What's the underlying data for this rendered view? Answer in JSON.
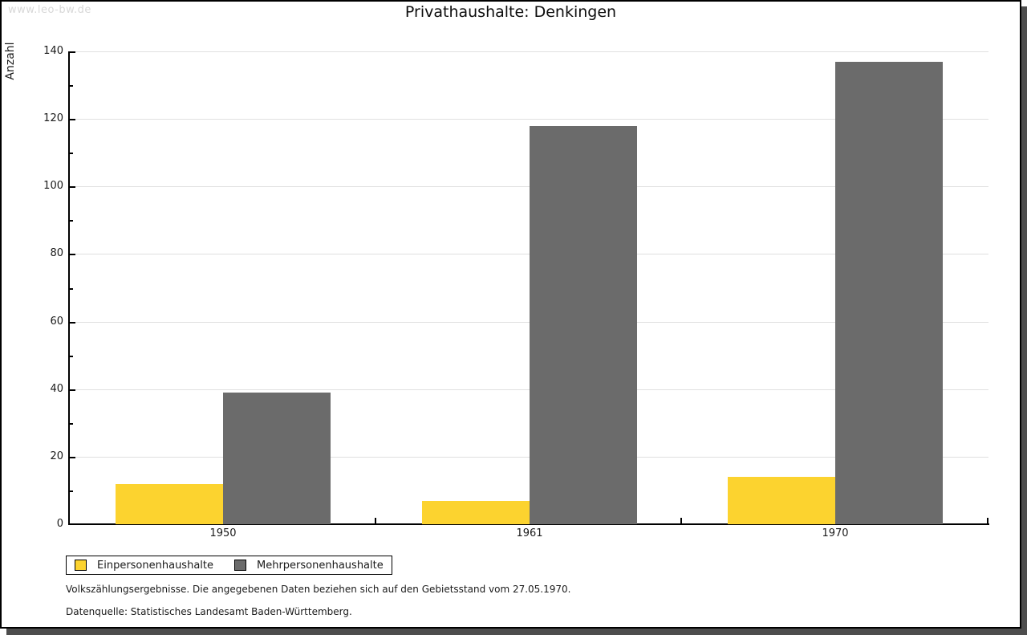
{
  "watermark": "www.leo-bw.de",
  "chart_data": {
    "type": "bar",
    "title": "Privathaushalte: Denkingen",
    "categories": [
      "1950",
      "1961",
      "1970"
    ],
    "series": [
      {
        "name": "Einpersonenhaushalte",
        "color": "#FCD32F",
        "values": [
          12,
          7,
          14
        ]
      },
      {
        "name": "Mehrpersonenhaushalte",
        "color": "#6B6B6B",
        "values": [
          39,
          118,
          137
        ]
      }
    ],
    "xlabel": "",
    "ylabel": "Anzahl",
    "ylim": [
      0,
      140
    ],
    "ytick_step": 20,
    "yminor_step": 10,
    "grid": "horizontal-major",
    "gridline_color": "#e0e0e0",
    "axis_color": "#000000",
    "legend_position": "bottom-left"
  },
  "footer": {
    "line1": "Volkszählungsergebnisse. Die angegebenen Daten beziehen sich auf den Gebietsstand vom 27.05.1970.",
    "line2": "Datenquelle: Statistisches Landesamt Baden-Württemberg."
  }
}
